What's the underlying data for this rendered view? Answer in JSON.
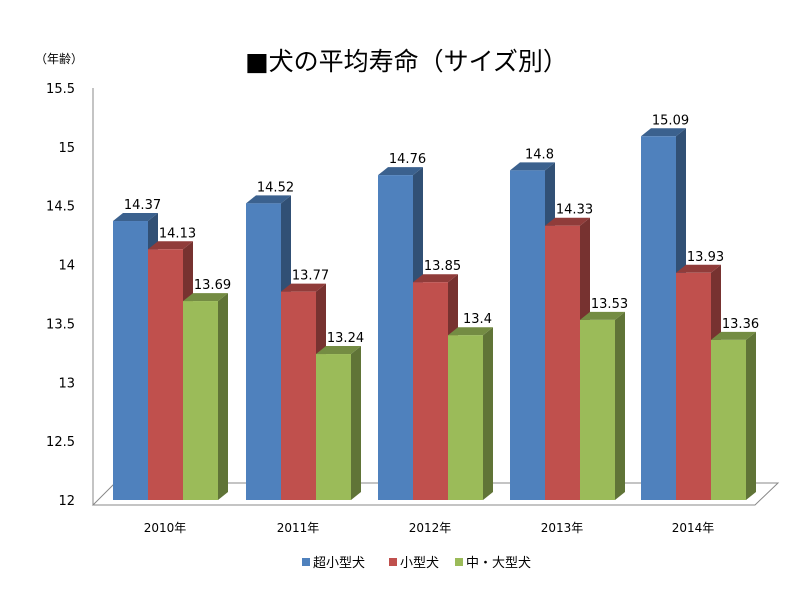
{
  "chart_data": {
    "type": "bar",
    "title": "■犬の平均寿命（サイズ別）",
    "ylabel": "（年齢）",
    "xlabel": "",
    "ylim": [
      12,
      15.5
    ],
    "yticks": [
      "12",
      "12.5",
      "13",
      "13.5",
      "14",
      "14.5",
      "15",
      "15.5"
    ],
    "categories": [
      "2010年",
      "2011年",
      "2012年",
      "2013年",
      "2014年"
    ],
    "series": [
      {
        "name": "超小型犬",
        "color": "#4f81bd",
        "values": [
          14.37,
          14.52,
          14.76,
          14.8,
          15.09
        ],
        "labels": [
          "14.37",
          "14.52",
          "14.76",
          "14.8",
          "15.09"
        ]
      },
      {
        "name": "小型犬",
        "color": "#c0504d",
        "values": [
          14.13,
          13.77,
          13.85,
          14.33,
          13.93
        ],
        "labels": [
          "14.13",
          "13.77",
          "13.85",
          "14.33",
          "13.93"
        ]
      },
      {
        "name": "中・大型犬",
        "color": "#9bbb59",
        "values": [
          13.69,
          13.24,
          13.4,
          13.53,
          13.36
        ],
        "labels": [
          "13.69",
          "13.24",
          "13.4",
          "13.53",
          "13.36"
        ]
      }
    ],
    "legend_position": "bottom",
    "grid": false,
    "style": "3d-column"
  }
}
